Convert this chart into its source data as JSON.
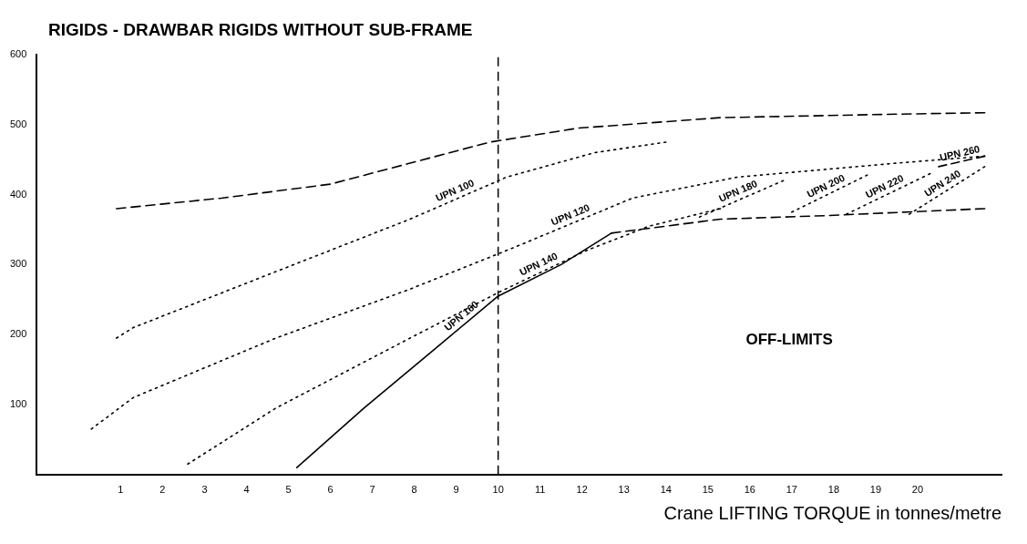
{
  "chart_data": {
    "type": "line",
    "title": "RIGIDS - DRAWBAR RIGIDS WITHOUT SUB-FRAME",
    "xlabel": "Crane LIFTING TORQUE in tonnes/metre",
    "xlim": [
      -1,
      22
    ],
    "xticks": [
      1,
      2,
      3,
      4,
      5,
      6,
      7,
      8,
      9,
      10,
      11,
      12,
      13,
      14,
      15,
      16,
      17,
      18,
      19,
      20
    ],
    "ylim": [
      0,
      600
    ],
    "yticks": [
      100,
      200,
      300,
      400,
      500,
      600
    ],
    "grid": false,
    "legend": false,
    "marker": "none",
    "series": [
      {
        "color": "#000000",
        "line_style": "dashed",
        "x": [
          0.9,
          3.4,
          6,
          9.8,
          11.9,
          15.3,
          19.5,
          21.6
        ],
        "values": [
          380,
          395,
          415,
          475,
          495,
          510,
          515,
          517
        ]
      },
      {
        "name": "UPN 100",
        "color": "#000000",
        "line_style": "dotted",
        "x": [
          0.9,
          1.3,
          4.7,
          7.9,
          10.2,
          12.3,
          14
        ],
        "values": [
          195,
          210,
          290,
          365,
          425,
          460,
          475
        ]
      },
      {
        "name": "UPN 120",
        "color": "#000000",
        "line_style": "dotted",
        "x": [
          0.3,
          1.3,
          4.7,
          7.9,
          10.4,
          13.2,
          15.7,
          19.5,
          21.6
        ],
        "values": [
          65,
          110,
          195,
          265,
          325,
          395,
          425,
          445,
          455
        ]
      },
      {
        "name": "UPN 140",
        "color": "#000000",
        "line_style": "dotted",
        "x": [
          2.6,
          4.7,
          7.9,
          10,
          12.1,
          13.6,
          15.3
        ],
        "values": [
          15,
          95,
          195,
          260,
          320,
          355,
          380
        ]
      },
      {
        "name": "UPN 160",
        "color": "#000000",
        "line_style": "solid",
        "x": [
          5.2,
          6.8,
          8.5,
          10,
          11.5,
          12.7
        ],
        "values": [
          10,
          95,
          180,
          255,
          300,
          345
        ]
      },
      {
        "color": "#000000",
        "line_style": "dashed",
        "x": [
          12.7,
          15.3,
          17.8,
          21.6
        ],
        "values": [
          345,
          365,
          370,
          380
        ]
      },
      {
        "name": "UPN 180",
        "color": "#000000",
        "line_style": "dotted",
        "x": [
          14.8,
          16.8
        ],
        "values": [
          368,
          420
        ]
      },
      {
        "name": "UPN 200",
        "color": "#000000",
        "line_style": "dotted",
        "x": [
          17,
          18.8
        ],
        "values": [
          375,
          428
        ]
      },
      {
        "name": "UPN 220",
        "color": "#000000",
        "line_style": "dotted",
        "x": [
          18.3,
          20.3
        ],
        "values": [
          372,
          430
        ]
      },
      {
        "name": "UPN 240",
        "color": "#000000",
        "line_style": "dotted",
        "x": [
          19.8,
          21.6
        ],
        "values": [
          372,
          440
        ]
      },
      {
        "name": "UPN 260",
        "color": "#000000",
        "line_style": "dashed",
        "x": [
          20.5,
          21.6
        ],
        "values": [
          440,
          455
        ]
      }
    ],
    "ref_lines": [
      {
        "axis": "x",
        "value": 10,
        "line_style": "dashed",
        "color": "#000000"
      }
    ],
    "annotations": [
      "OFF-LIMITS"
    ]
  }
}
